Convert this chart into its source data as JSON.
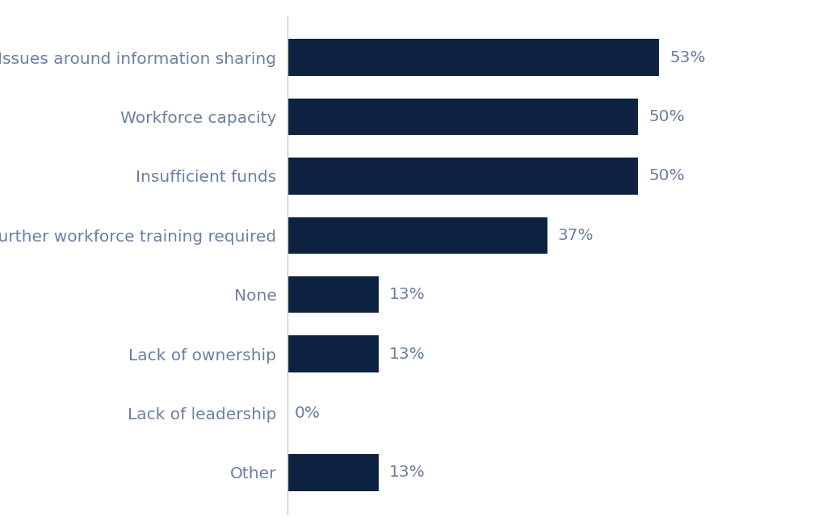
{
  "categories": [
    "Other",
    "Lack of leadership",
    "Lack of ownership",
    "None",
    "Further workforce training required",
    "Insufficient funds",
    "Workforce capacity",
    "Issues around information sharing"
  ],
  "values": [
    13,
    0,
    13,
    13,
    37,
    50,
    50,
    53
  ],
  "bar_color": "#0d2240",
  "label_color": "#6b7fa3",
  "value_color": "#6b7fa3",
  "background_color": "#ffffff",
  "bar_height": 0.62,
  "xlim": [
    0,
    68
  ],
  "label_fontsize": 14.5,
  "value_fontsize": 14.5,
  "spine_color": "#c8c8c8"
}
